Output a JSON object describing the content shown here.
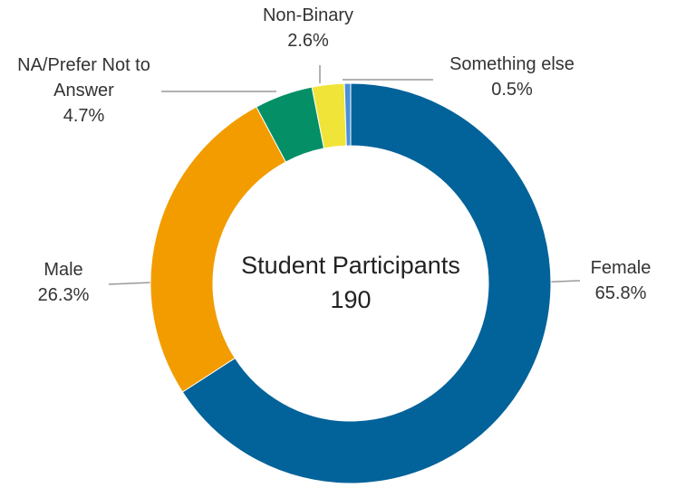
{
  "chart_data": {
    "type": "donut",
    "center_title": "Student Participants",
    "center_value": "190",
    "categories": [
      "Female",
      "Male",
      "NA/Prefer Not to Answer",
      "Non-Binary",
      "Something else"
    ],
    "values": [
      65.8,
      26.3,
      4.7,
      2.6,
      0.5
    ],
    "value_labels": [
      "65.8%",
      "26.3%",
      "4.7%",
      "2.6%",
      "0.5%"
    ],
    "colors": [
      "#02629a",
      "#f29c00",
      "#048f66",
      "#f1e439",
      "#4a90d9"
    ]
  }
}
